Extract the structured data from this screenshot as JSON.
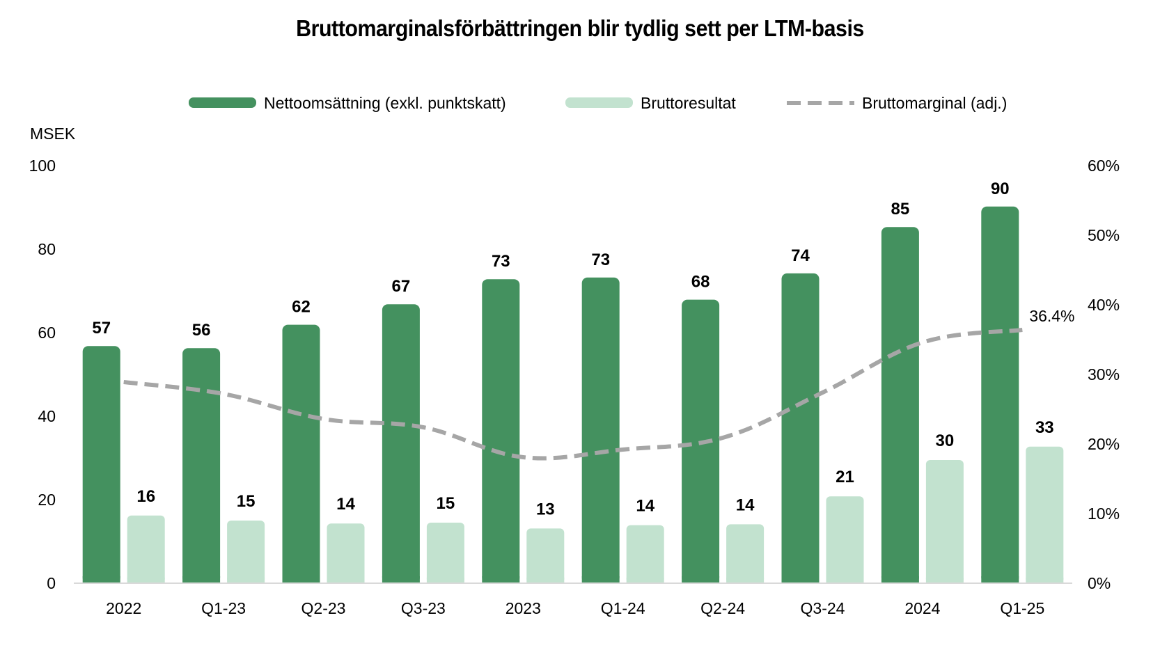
{
  "chart_data": {
    "type": "bar",
    "title": "Bruttomarginalsförbättringen blir tydlig sett per LTM-basis",
    "y_left_label": "MSEK",
    "categories": [
      "2022",
      "Q1-23",
      "Q2-23",
      "Q3-23",
      "2023",
      "Q1-24",
      "Q2-24",
      "Q3-24",
      "2024",
      "Q1-25"
    ],
    "y_left_ticks": [
      "0",
      "20",
      "40",
      "60",
      "80",
      "100"
    ],
    "y_left_range": [
      0,
      100
    ],
    "y_right_ticks": [
      "0%",
      "10%",
      "20%",
      "30%",
      "40%",
      "50%",
      "60%"
    ],
    "y_right_range": [
      0,
      60
    ],
    "legend_position": "top-center",
    "series": [
      {
        "name": "Nettoomsättning (exkl. punktskatt)",
        "kind": "bar",
        "axis": "left",
        "color": "#44915f",
        "values": [
          56.8,
          56.3,
          61.9,
          66.8,
          72.8,
          73.2,
          67.9,
          74.2,
          85.3,
          90.2
        ],
        "labels": [
          "57",
          "56",
          "62",
          "67",
          "73",
          "73",
          "68",
          "74",
          "85",
          "90"
        ]
      },
      {
        "name": "Bruttoresultat",
        "kind": "bar",
        "axis": "left",
        "color": "#c2e2cf",
        "values": [
          16.2,
          15.0,
          14.3,
          14.5,
          13.1,
          13.9,
          14.1,
          20.8,
          29.5,
          32.7
        ],
        "labels": [
          "16",
          "15",
          "14",
          "15",
          "13",
          "14",
          "14",
          "21",
          "30",
          "33"
        ]
      },
      {
        "name": "Bruttomarginal (adj.)",
        "kind": "line",
        "axis": "right",
        "style": "dashed",
        "color": "#a6a6a6",
        "values": [
          28.9,
          27.2,
          23.6,
          22.4,
          18.1,
          19.2,
          20.9,
          27.4,
          34.6,
          36.4
        ],
        "last_label": "36.4%"
      }
    ]
  }
}
